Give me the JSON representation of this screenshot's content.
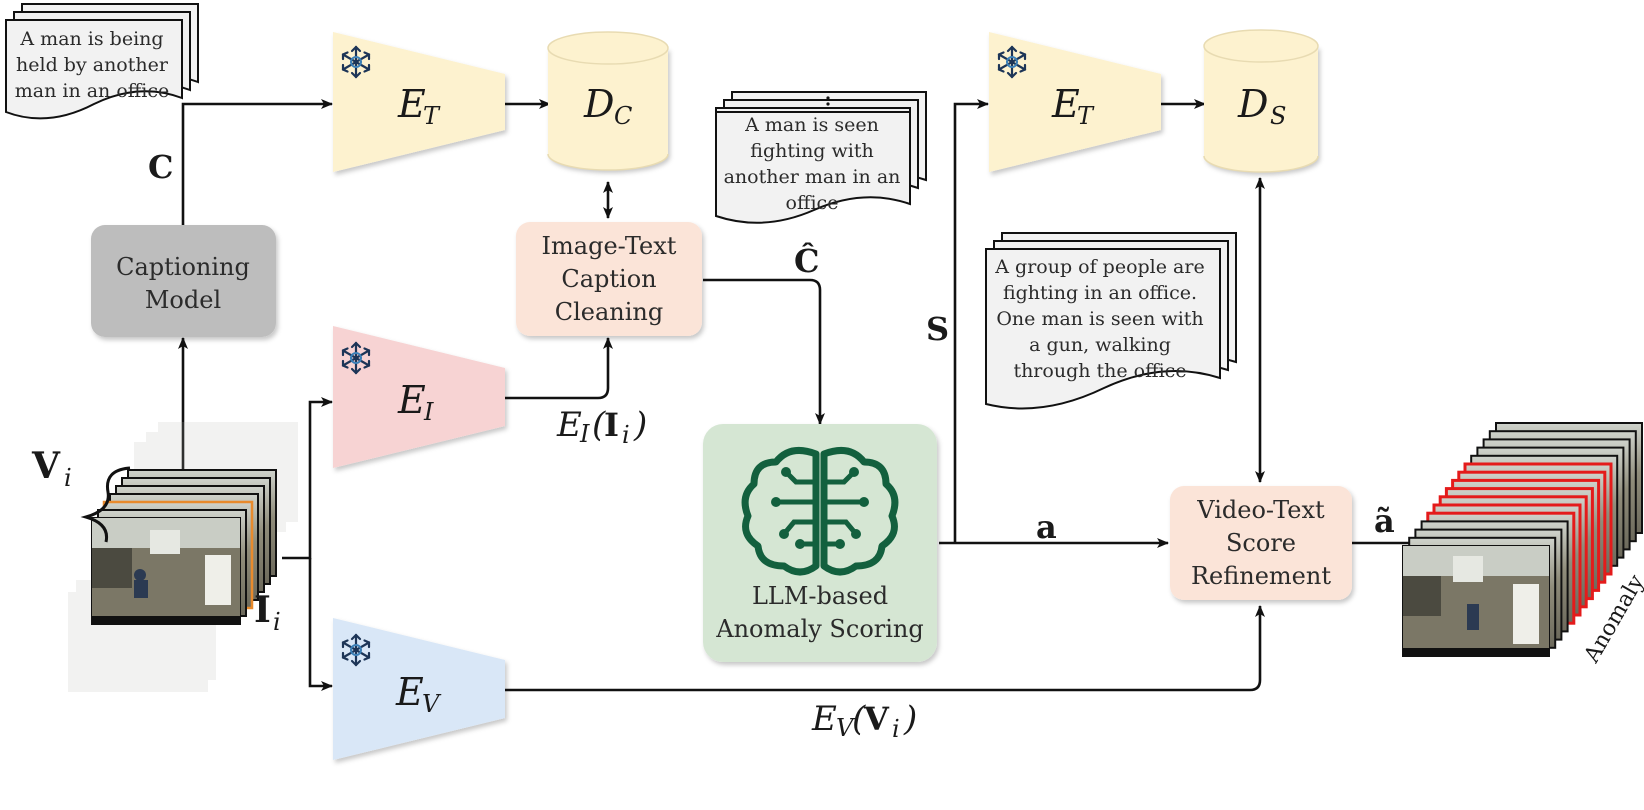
{
  "nodes": {
    "captioning_model": {
      "line1": "Captioning",
      "line2": "Model"
    },
    "image_text_cleaning": {
      "line1": "Image-Text",
      "line2": "Caption",
      "line3": "Cleaning"
    },
    "llm_scoring": {
      "line1": "LLM-based",
      "line2": "Anomaly Scoring"
    },
    "video_text_refinement": {
      "line1": "Video-Text",
      "line2": "Score",
      "line3": "Refinement"
    },
    "encoder_text_top_left": {
      "symbol": "E",
      "sub": "T"
    },
    "encoder_text_top_right": {
      "symbol": "E",
      "sub": "T"
    },
    "encoder_image": {
      "symbol": "E",
      "sub": "I"
    },
    "encoder_video": {
      "symbol": "E",
      "sub": "V"
    },
    "db_captions": {
      "symbol": "D",
      "sub": "C"
    },
    "db_summaries": {
      "symbol": "D",
      "sub": "S"
    }
  },
  "documents": {
    "caption_raw": [
      "A man is being",
      "held by another",
      "man in an office"
    ],
    "caption_clean": [
      "A man is seen",
      "fighting with",
      "another man in an",
      "office"
    ],
    "summary": [
      "A group of people are",
      "fighting in an office.",
      "One man is seen with",
      "a gun, walking",
      "through the office"
    ]
  },
  "edge_labels": {
    "C": "C",
    "C_hat": "Ĉ",
    "S": "S",
    "a": "a",
    "a_tilde": "ã",
    "EI_of_Ii": {
      "enc": "E",
      "sub": "I",
      "arg": "I",
      "argsub": "i"
    },
    "EV_of_Vi": {
      "enc": "E",
      "sub": "V",
      "arg": "V",
      "argsub": "i"
    }
  },
  "inputs": {
    "V": {
      "main": "V",
      "sub": "i"
    },
    "I": {
      "main": "I",
      "sub": "i"
    }
  },
  "output_label": "Anomaly",
  "colors": {
    "text_encoder": "#fdf2cf",
    "image_encoder": "#f7d3d3",
    "video_encoder": "#d9e7f7",
    "database": "#fdf2cf",
    "captioning": "#bdbdbd",
    "cleaning": "#fbe4d8",
    "llm": "#d5e6d3",
    "refinement": "#fbe4d8",
    "brain": "#13603e",
    "anomaly_frame": "#e41b1b",
    "current_frame": "#e88a2c"
  },
  "icons": [
    "frozen-snowflake-icon",
    "brain-circuit-icon"
  ]
}
